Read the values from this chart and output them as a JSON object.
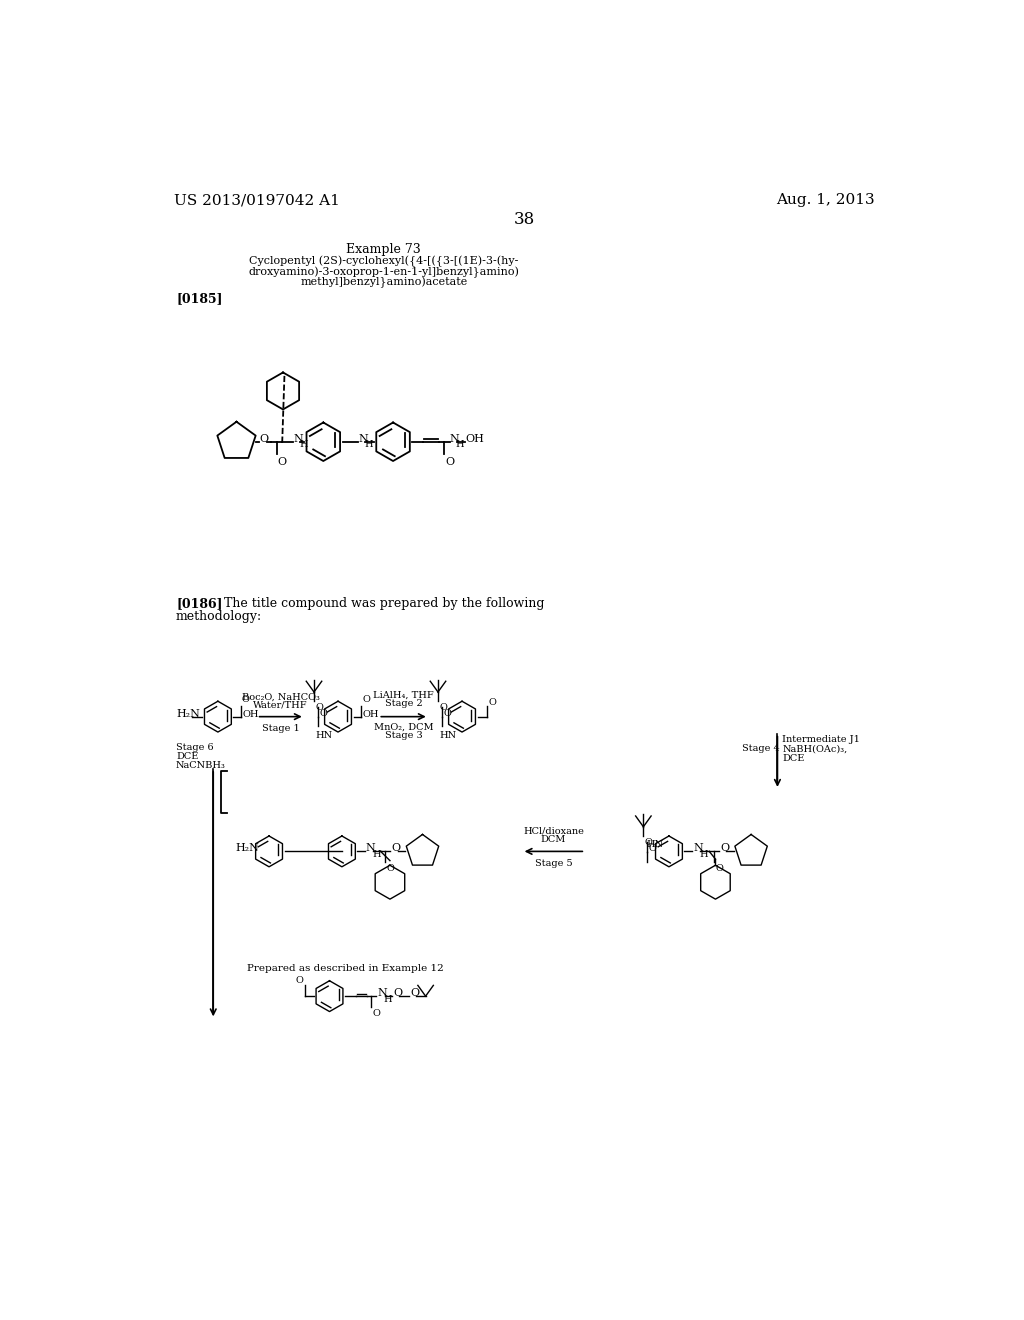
{
  "page_width": 10.24,
  "page_height": 13.2,
  "background_color": "#ffffff",
  "header_left": "US 2013/0197042 A1",
  "header_right": "Aug. 1, 2013",
  "page_number": "38",
  "example_title": "Example 73",
  "compound_name_line1": "Cyclopentyl (2S)-cyclohexyl({4-[({3-[(1E)-3-(hy-",
  "compound_name_line2": "droxyamino)-3-oxoprop-1-en-1-yl]benzyl}amino)",
  "compound_name_line3": "methyl]benzyl}amino)acetate",
  "paragraph_0185": "[0185]",
  "paragraph_0186": "[0186]",
  "paragraph_0186_rest": "   The title compound was prepared by the following",
  "paragraph_0186_line2": "methodology:",
  "stage1_line1": "Boc₂O, NaHCO₃",
  "stage1_line2": "Water/THF",
  "stage1_line3": "Stage 1",
  "stage2_line1": "LiAlH₄, THF",
  "stage2_line2": "Stage 2",
  "stage3_line1": "MnO₂, DCM",
  "stage3_line2": "Stage 3",
  "stage4_line0": "Intermediate J1",
  "stage4_line1": "NaBH(OAc)₃,",
  "stage4_line2": "DCE",
  "stage4_prefix": "Stage 4",
  "stage5_line1": "HCl/dioxane",
  "stage5_line2": "DCM",
  "stage5_line3": "Stage 5",
  "stage6_line1": "NaCNBH₃",
  "stage6_line2": "DCE",
  "stage6_line3": "Stage 6",
  "prepared_note": "Prepared as described in Example 12",
  "font_size_header": 11,
  "font_size_body": 9,
  "font_size_small": 8,
  "font_size_scheme": 7,
  "font_size_page_num": 12,
  "font_size_atom": 8
}
